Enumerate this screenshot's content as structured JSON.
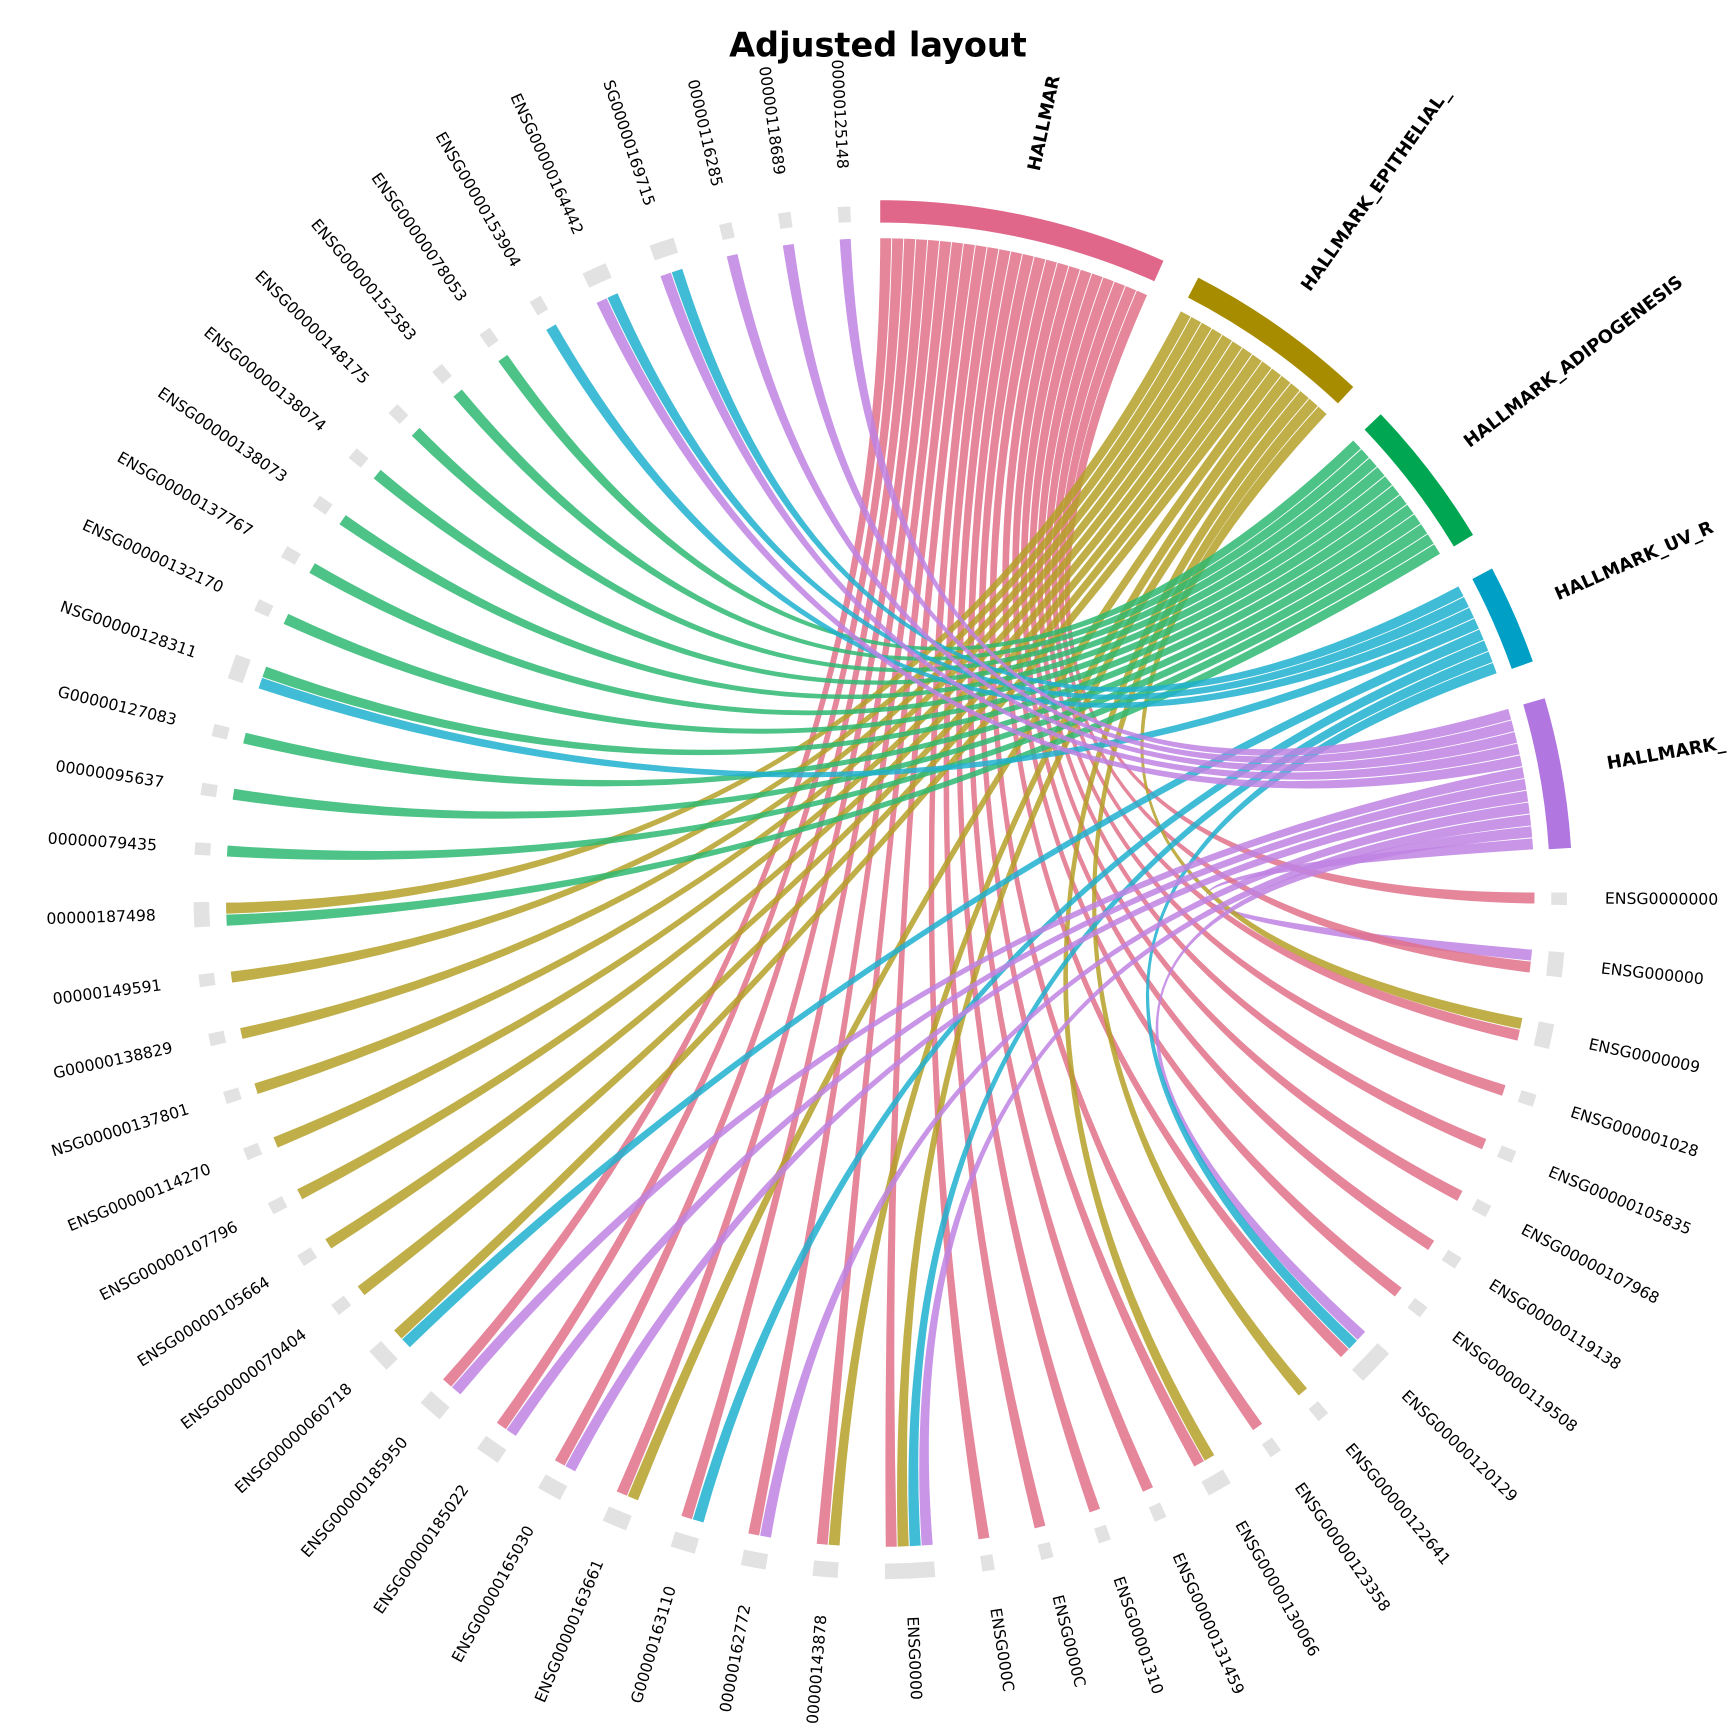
{
  "title": "Adjusted layout",
  "hallmarks": [
    {
      "label": "HALLMAR",
      "color": "#e0668a"
    },
    {
      "label": "HALLMARK_EPITHELIAL_",
      "color": "#a88c00"
    },
    {
      "label": "HALLMARK_ADIPOGENESIS",
      "color": "#00a651"
    },
    {
      "label": "HALLMARK_UV_R",
      "color": "#00a0c6"
    },
    {
      "label": "HALLMARK_",
      "color": "#b276e0"
    }
  ],
  "genes": [
    {
      "label": "ENSG0000000",
      "links": [
        0
      ]
    },
    {
      "label": "ENSG000000",
      "links": [
        4,
        0
      ]
    },
    {
      "label": "ENSG0000009",
      "links": [
        1,
        0
      ]
    },
    {
      "label": "ENSG000001028",
      "links": [
        0
      ]
    },
    {
      "label": "ENSG00000105835",
      "links": [
        0
      ]
    },
    {
      "label": "ENSG00000107968",
      "links": [
        0
      ]
    },
    {
      "label": "ENSG00000119138",
      "links": [
        0
      ]
    },
    {
      "label": "ENSG00000119508",
      "links": [
        0
      ]
    },
    {
      "label": "ENSG00000120129",
      "links": [
        4,
        3,
        0
      ]
    },
    {
      "label": "ENSG00000122641",
      "links": [
        1
      ]
    },
    {
      "label": "ENSG00000123358",
      "links": [
        0
      ]
    },
    {
      "label": "ENSG00000130066",
      "links": [
        1,
        0
      ]
    },
    {
      "label": "ENSG00000131459",
      "links": [
        0
      ]
    },
    {
      "label": "ENSG00001310",
      "links": [
        0
      ]
    },
    {
      "label": "ENSG0000C",
      "links": [
        0
      ]
    },
    {
      "label": "ENSG000C",
      "links": [
        0
      ]
    },
    {
      "label": "ENSG0000",
      "links": [
        4,
        3,
        1,
        0
      ]
    },
    {
      "label": "00000143878",
      "links": [
        1,
        0
      ]
    },
    {
      "label": "00000162772",
      "links": [
        4,
        0
      ]
    },
    {
      "label": "G00000163110",
      "links": [
        3,
        0
      ]
    },
    {
      "label": "ENSG00000163661",
      "links": [
        1,
        0
      ]
    },
    {
      "label": "ENSG00000165030",
      "links": [
        4,
        0
      ]
    },
    {
      "label": "ENSG00000185022",
      "links": [
        4,
        0
      ]
    },
    {
      "label": "ENSG00000185950",
      "links": [
        4,
        0
      ]
    },
    {
      "label": "ENSG00000060718",
      "links": [
        3,
        1
      ]
    },
    {
      "label": "ENSG00000070404",
      "links": [
        1
      ]
    },
    {
      "label": "ENSG00000105664",
      "links": [
        1
      ]
    },
    {
      "label": "ENSG00000107796",
      "links": [
        1
      ]
    },
    {
      "label": "ENSG00000114270",
      "links": [
        1
      ]
    },
    {
      "label": "NSG00000137801",
      "links": [
        1
      ]
    },
    {
      "label": "G00000138829",
      "links": [
        1
      ]
    },
    {
      "label": "00000149591",
      "links": [
        1
      ]
    },
    {
      "label": "00000187498",
      "links": [
        2,
        1
      ]
    },
    {
      "label": "00000079435",
      "links": [
        2
      ]
    },
    {
      "label": "00000095637",
      "links": [
        2
      ]
    },
    {
      "label": "G00000127083",
      "links": [
        2
      ]
    },
    {
      "label": "NSG00000128311",
      "links": [
        3,
        2
      ]
    },
    {
      "label": "ENSG00000132170",
      "links": [
        2
      ]
    },
    {
      "label": "ENSG00000137767",
      "links": [
        2
      ]
    },
    {
      "label": "ENSG00000138073",
      "links": [
        2
      ]
    },
    {
      "label": "ENSG00000138074",
      "links": [
        2
      ]
    },
    {
      "label": "ENSG00000148175",
      "links": [
        2
      ]
    },
    {
      "label": "ENSG00000152583",
      "links": [
        2
      ]
    },
    {
      "label": "ENSG00000078053",
      "links": [
        2
      ]
    },
    {
      "label": "ENSG00000153904",
      "links": [
        3
      ]
    },
    {
      "label": "ENSG00000164442",
      "links": [
        4,
        3
      ]
    },
    {
      "label": "SG00000169715",
      "links": [
        4,
        3
      ]
    },
    {
      "label": "00000116285",
      "links": [
        4
      ]
    },
    {
      "label": "00000118689",
      "links": [
        4
      ]
    },
    {
      "label": "00000125148",
      "links": [
        4
      ]
    }
  ]
}
